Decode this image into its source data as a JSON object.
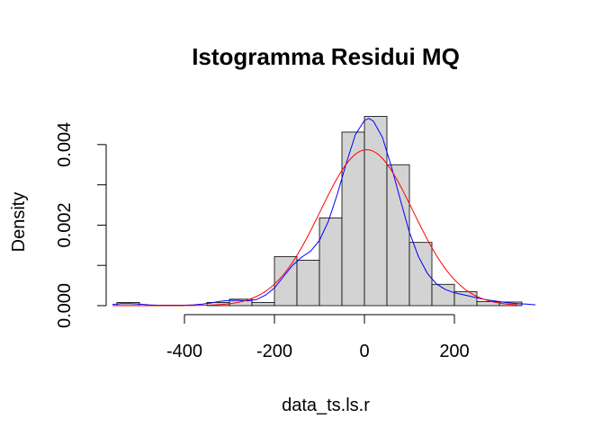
{
  "chart_data": {
    "type": "bar",
    "subtype": "histogram",
    "title": "Istogramma Residui MQ",
    "xlabel": "data_ts.ls.r",
    "ylabel": "Density",
    "xlim": [
      -560,
      390
    ],
    "ylim": [
      0,
      0.0048
    ],
    "x_ticks": [
      -400,
      -200,
      0,
      200
    ],
    "x_tick_labels": [
      "-400",
      "-200",
      "0",
      "200"
    ],
    "y_ticks": [
      0,
      0.001,
      0.002,
      0.003,
      0.004
    ],
    "y_tick_labels": [
      "0.000",
      "",
      "0.002",
      "",
      "0.004"
    ],
    "bin_width": 50,
    "bins": [
      {
        "x0": -550,
        "x1": -500,
        "density": 8e-05
      },
      {
        "x0": -500,
        "x1": -450,
        "density": 0.0
      },
      {
        "x0": -450,
        "x1": -400,
        "density": 0.0
      },
      {
        "x0": -400,
        "x1": -350,
        "density": 0.0
      },
      {
        "x0": -350,
        "x1": -300,
        "density": 8e-05
      },
      {
        "x0": -300,
        "x1": -250,
        "density": 0.00016
      },
      {
        "x0": -250,
        "x1": -200,
        "density": 8e-05
      },
      {
        "x0": -200,
        "x1": -150,
        "density": 0.00122
      },
      {
        "x0": -150,
        "x1": -100,
        "density": 0.00113
      },
      {
        "x0": -100,
        "x1": -50,
        "density": 0.00218
      },
      {
        "x0": -50,
        "x1": 0,
        "density": 0.00431
      },
      {
        "x0": 0,
        "x1": 50,
        "density": 0.0047
      },
      {
        "x0": 50,
        "x1": 100,
        "density": 0.0035
      },
      {
        "x0": 100,
        "x1": 150,
        "density": 0.00157
      },
      {
        "x0": 150,
        "x1": 200,
        "density": 0.00053
      },
      {
        "x0": 200,
        "x1": 250,
        "density": 0.00035
      },
      {
        "x0": 250,
        "x1": 300,
        "density": 0.0001
      },
      {
        "x0": 300,
        "x1": 350,
        "density": 9e-05
      }
    ],
    "series": [
      {
        "color": "#0000ff",
        "x": [
          -560,
          -540,
          -520,
          -500,
          -480,
          -460,
          -440,
          -420,
          -400,
          -380,
          -360,
          -340,
          -320,
          -300,
          -280,
          -260,
          -240,
          -220,
          -200,
          -180,
          -160,
          -140,
          -120,
          -100,
          -80,
          -60,
          -40,
          -20,
          0,
          10,
          20,
          40,
          60,
          80,
          100,
          120,
          140,
          160,
          180,
          200,
          220,
          240,
          260,
          280,
          300,
          320,
          340,
          360,
          380
        ],
        "y": [
          3e-05,
          5e-05,
          5e-05,
          4e-05,
          2e-05,
          1e-05,
          1e-05,
          1e-05,
          1e-05,
          2e-05,
          4e-05,
          7e-05,
          0.00011,
          0.00013,
          0.00013,
          0.00012,
          0.00015,
          0.00026,
          0.00044,
          0.00072,
          0.001,
          0.0012,
          0.00135,
          0.00162,
          0.0021,
          0.00278,
          0.00355,
          0.00425,
          0.0046,
          0.00465,
          0.00458,
          0.00418,
          0.00345,
          0.00262,
          0.00182,
          0.00122,
          0.0008,
          0.00054,
          0.0004,
          0.00032,
          0.00027,
          0.00022,
          0.00017,
          0.00013,
          0.0001,
          7e-05,
          5e-05,
          4e-05,
          2e-05
        ]
      },
      {
        "color": "#ff0000",
        "distribution": "normal",
        "mean": 5,
        "sd": 103
      }
    ],
    "grid": false,
    "legend": "none"
  }
}
